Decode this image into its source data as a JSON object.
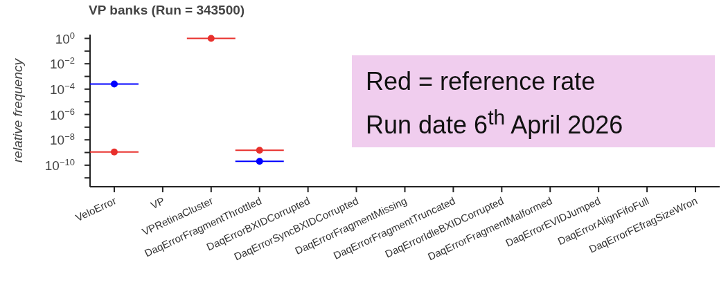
{
  "chart_data": {
    "type": "scatter",
    "title": "VP banks (Run = 343500)",
    "ylabel": "relative frequency",
    "log": true,
    "marker": "circle",
    "categories": [
      "VeloError",
      "VP",
      "VPRetinaCluster",
      "DaqErrorFragmentThrottled",
      "DaqErrorBXIDCorrupted",
      "DaqErrorSyncBXIDCorrupted",
      "DaqErrorFragmentMissing",
      "DaqErrorFragmentTruncated",
      "DaqErrorIdleBXIDCorrupted",
      "DaqErrorFragmentMalformed",
      "DaqErrorEVIDJumped",
      "DaqErrorAlignFifoFull",
      "DaqErrorFEfragSizeWron"
    ],
    "series": [
      {
        "color": "#0000ff",
        "values": [
          0.00025,
          null,
          null,
          2e-10,
          null,
          null,
          null,
          null,
          null,
          null,
          null,
          null,
          null
        ]
      },
      {
        "color": "#e8302c",
        "values": [
          1.1e-09,
          null,
          1,
          1.5e-09,
          null,
          null,
          null,
          null,
          null,
          null,
          null,
          null,
          null
        ]
      }
    ],
    "ylim": [
      2e-12,
      2
    ],
    "yticks": [
      {
        "value": 1,
        "label": "10$^{0}$"
      },
      {
        "value": 0.1,
        "label": null
      },
      {
        "value": 0.01,
        "label": "10$^{−2}$"
      },
      {
        "value": 0.001,
        "label": null
      },
      {
        "value": 0.0001,
        "label": "10$^{−4}$"
      },
      {
        "value": 1e-05,
        "label": null
      },
      {
        "value": 1e-06,
        "label": "10$^{−6}$"
      },
      {
        "value": 1e-07,
        "label": null
      },
      {
        "value": 1e-08,
        "label": "10$^{−8}$"
      },
      {
        "value": 1e-09,
        "label": null
      },
      {
        "value": 1e-10,
        "label": "10$^{−10}$"
      },
      {
        "value": 1e-11,
        "label": null
      }
    ],
    "annotations": [
      "Red = reference rate",
      "Run date 6$^{th}$ April 2026"
    ]
  }
}
